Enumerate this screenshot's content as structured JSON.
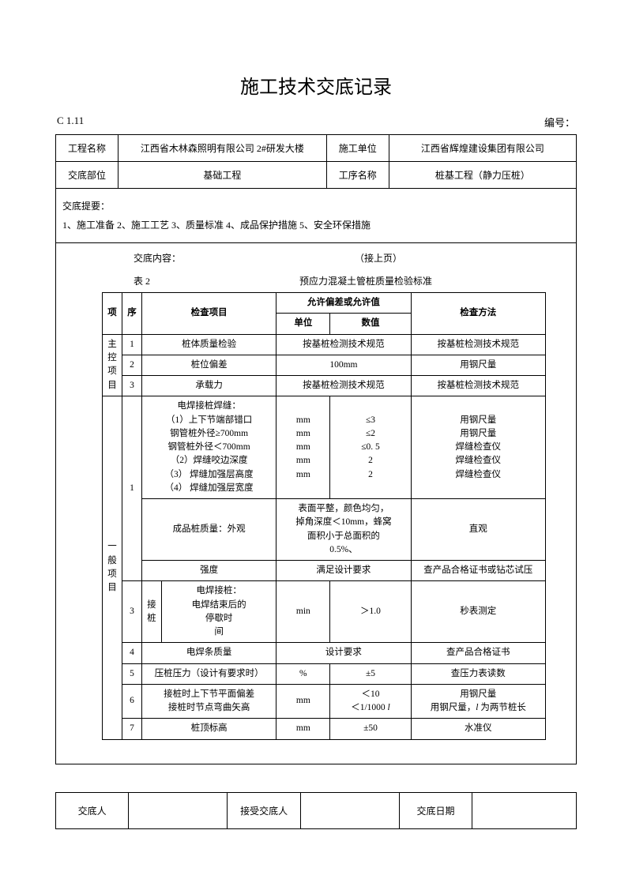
{
  "title": "施工技术交底记录",
  "code": "C 1.11",
  "serial_label": "编号：",
  "header": {
    "project_name_label": "工程名称",
    "project_name": "江西省木林森照明有限公司 2#研发大楼",
    "construction_unit_label": "施工单位",
    "construction_unit": "江西省辉煌建设集团有限公司",
    "location_label": "交底部位",
    "location": "基础工程",
    "proc_name_label": "工序名称",
    "proc_name": "桩基工程（静力压桩）"
  },
  "summary": {
    "label": "交底提要：",
    "text": "1、施工准备   2、施工工艺   3、质量标准   4、成品保护措施   5、安全环保措施"
  },
  "content": {
    "content_label": "交底内容：",
    "cont_page": "（接上页）",
    "table_no": "表 2",
    "table_title": "预应力混凝土管桩质量检验标准",
    "th_cat": "项",
    "th_seq": "序",
    "th_item": "检查项目",
    "th_tol": "允许偏差或允许值",
    "th_unit": "单位",
    "th_val": "数值",
    "th_method": "检查方法",
    "cat1": "主控项目",
    "r1": {
      "seq": "1",
      "item": "桩体质量检验",
      "tol": "按基桩检测技术规范",
      "method": "按基桩检测技术规范"
    },
    "r2": {
      "seq": "2",
      "item": "桩位偏差",
      "tol": "100mm",
      "method": "用钢尺量"
    },
    "r3": {
      "seq": "3",
      "item": "承载力",
      "tol": "按基桩检测技术规范",
      "method": "按基桩检测技术规范"
    },
    "cat2": "一般项目",
    "r4": {
      "seq": "1",
      "item_a": "电焊接桩焊缝：\n（1）上下节端部错口\n钢管桩外径≥700mm\n钢管桩外径＜700mm\n（2）焊缝咬边深度\n（3） 焊缝加强层高度\n（4） 焊缝加强层宽度",
      "unit": "mm\nmm\nmm\nmm\nmm",
      "val": "≤3\n≤2\n≤0. 5\n2\n2",
      "method": "用钢尺量\n用钢尺量\n焊缝检查仪\n焊缝检查仪\n焊缝检查仪",
      "item_b": "成品桩质量：外观",
      "tol_b": "表面平整，颜色均匀，\n掉角深度＜10mm，蜂窝\n面积小于总面积的\n0.5%、",
      "method_b": "直观",
      "item_c": "强度",
      "tol_c": "满足设计要求",
      "method_c": "查产品合格证书或钻芯试压"
    },
    "r5": {
      "seq": "3",
      "sub": "接桩",
      "item": "电焊接桩：\n电焊结束后的\n               停歇时\n               间",
      "unit": "min",
      "val": "＞1.0",
      "method": "秒表测定"
    },
    "r6": {
      "seq": "4",
      "item": "电焊条质量",
      "tol": "设计要求",
      "method": "查产品合格证书"
    },
    "r7": {
      "seq": "5",
      "item": "压桩压力（设计有要求时）",
      "unit": "%",
      "val": "±5",
      "method": "查压力表读数"
    },
    "r8": {
      "seq": "6",
      "item": "接桩时上下节平面偏差\n接桩时节点弯曲矢高",
      "unit": "mm",
      "val": "＜10\n＜1/1000 l",
      "method": "用钢尺量\n用钢尺量，l 为两节桩长"
    },
    "r9": {
      "seq": "7",
      "item": "桩顶标高",
      "unit": "mm",
      "val": "±50",
      "method": "水准仪"
    }
  },
  "footer": {
    "f1": "交底人",
    "f2": "接受交底人",
    "f3": "交底日期"
  }
}
